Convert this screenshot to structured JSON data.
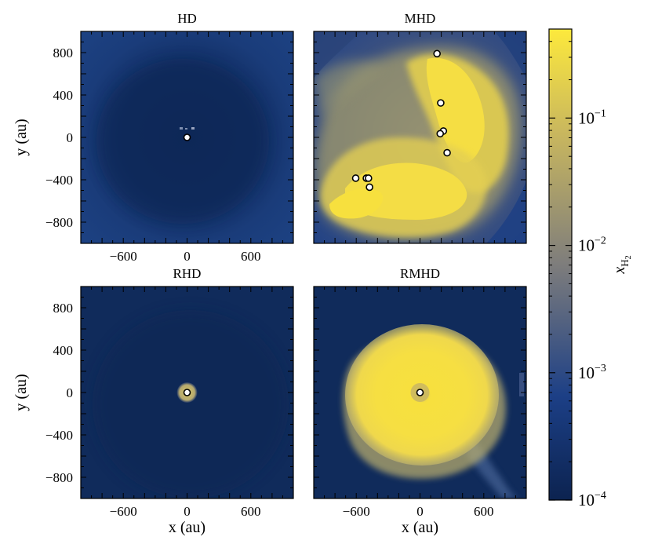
{
  "chart_data": {
    "type": "heatmap",
    "panels": [
      {
        "title": "HD",
        "ylabel": "y (au)",
        "xlabel": "",
        "xlim": [
          -1000,
          1000
        ],
        "ylim": [
          -1000,
          1000
        ],
        "sinks": [
          [
            0,
            0
          ]
        ]
      },
      {
        "title": "MHD",
        "ylabel": "",
        "xlabel": "",
        "xlim": [
          -1000,
          1000
        ],
        "ylim": [
          -1000,
          1000
        ],
        "sinks": [
          [
            160,
            790
          ],
          [
            195,
            325
          ],
          [
            220,
            60
          ],
          [
            190,
            35
          ],
          [
            255,
            -145
          ],
          [
            -605,
            -385
          ],
          [
            -505,
            -385
          ],
          [
            -485,
            -385
          ],
          [
            -475,
            -470
          ]
        ]
      },
      {
        "title": "RHD",
        "ylabel": "y (au)",
        "xlabel": "x (au)",
        "xlim": [
          -1000,
          1000
        ],
        "ylim": [
          -1000,
          1000
        ],
        "sinks": [
          [
            0,
            0
          ]
        ]
      },
      {
        "title": "RMHD",
        "ylabel": "",
        "xlabel": "x (au)",
        "xlim": [
          -1000,
          1000
        ],
        "ylim": [
          -1000,
          1000
        ],
        "sinks": [
          [
            0,
            0
          ]
        ]
      }
    ],
    "xticks": [
      -600,
      0,
      600
    ],
    "xtick_labels": [
      "−600",
      "0",
      "600"
    ],
    "yticks": [
      800,
      400,
      0,
      -400,
      -800
    ],
    "ytick_labels": [
      "800",
      "400",
      "0",
      "−400",
      "−800"
    ],
    "colorbar": {
      "label": "x",
      "label_sub": "H",
      "label_subsub": "2",
      "scale": "log",
      "range": [
        0.0001,
        0.5
      ],
      "ticks": [
        {
          "value": 0.1,
          "base": "10",
          "exp": "−1"
        },
        {
          "value": 0.01,
          "base": "10",
          "exp": "−2"
        },
        {
          "value": 0.001,
          "base": "10",
          "exp": "−3"
        },
        {
          "value": 0.0001,
          "base": "10",
          "exp": "−4"
        }
      ],
      "colors": [
        "#0c2350",
        "#1c3f86",
        "#7e7d7c",
        "#c9b75e",
        "#fde93c"
      ]
    }
  }
}
